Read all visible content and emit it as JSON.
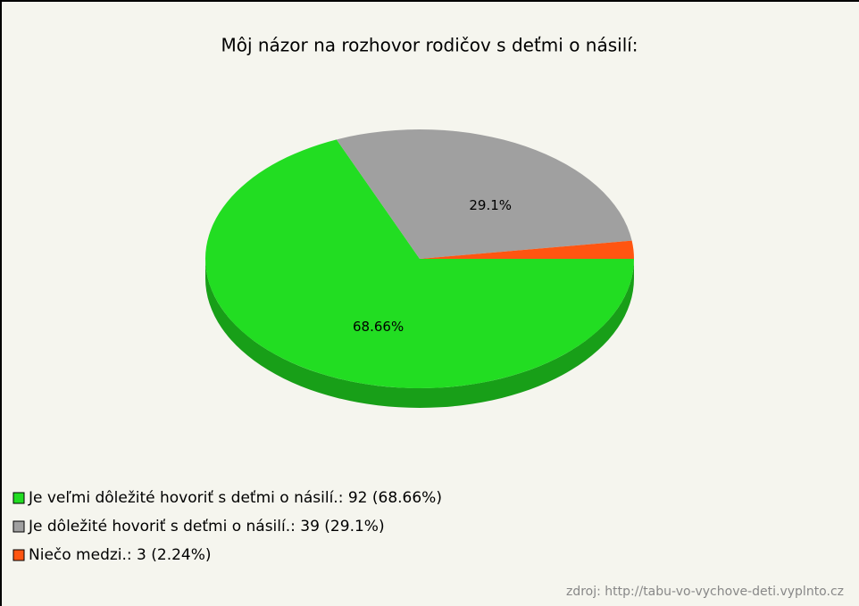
{
  "chart_data": {
    "type": "pie",
    "title": "Môj názor na rozhovor rodičov s deťmi o násilí:",
    "categories": [
      "Je veľmi dôležité hovoriť s deťmi o násilí.",
      "Je dôležité hovoriť s deťmi o násilí.",
      "Niečo medzi."
    ],
    "values": [
      68.66,
      29.1,
      2.24
    ],
    "value_labels": [
      "68.66%",
      "29.1%",
      null
    ],
    "colors": [
      "#22dd22",
      "#a0a0a0",
      "#ff5511"
    ],
    "legend_labels": [
      "Je veľmi dôležité hovoriť s deťmi o násilí.: 92 (68.66%)",
      "Je dôležité hovoriť s deťmi o násilí.: 39 (29.1%)",
      "Niečo medzi.: 3 (2.24%)"
    ],
    "legend": "bottom-left",
    "source": "zdroj: http://tabu-vo-vychove-deti.vyplnto.cz"
  }
}
